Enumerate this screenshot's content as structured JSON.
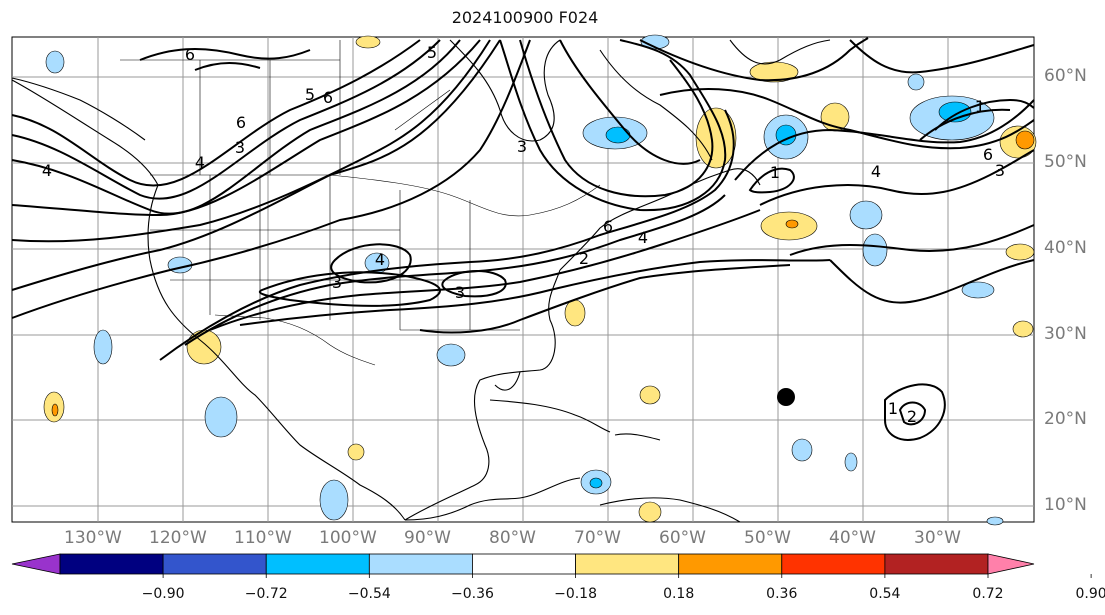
{
  "title": "2024100900 F024",
  "map": {
    "lon_labels": [
      "130°W",
      "120°W",
      "110°W",
      "100°W",
      "90°W",
      "80°W",
      "70°W",
      "60°W",
      "50°W",
      "40°W",
      "30°W"
    ],
    "lat_labels": [
      "60°N",
      "50°N",
      "40°N",
      "30°N",
      "20°N",
      "10°N"
    ],
    "grid": true,
    "contour_labels": [
      "6",
      "6",
      "6",
      "5",
      "4",
      "4",
      "3",
      "4",
      "3",
      "3",
      "3",
      "5",
      "6",
      "4",
      "2",
      "1",
      "4",
      "3",
      "1",
      "2",
      "1",
      "6"
    ],
    "marker": "storm-center-dot"
  },
  "colorbar": {
    "ticks": [
      "−0.90",
      "−0.72",
      "−0.54",
      "−0.36",
      "−0.18",
      "0.18",
      "0.36",
      "0.54",
      "0.72",
      "0.90"
    ],
    "colors": [
      "#9933cc",
      "#000080",
      "#3355cc",
      "#00bfff",
      "#aaddff",
      "#ffffff",
      "#ffe680",
      "#ff9900",
      "#ff3300",
      "#b22222",
      "#ff80aa"
    ]
  }
}
